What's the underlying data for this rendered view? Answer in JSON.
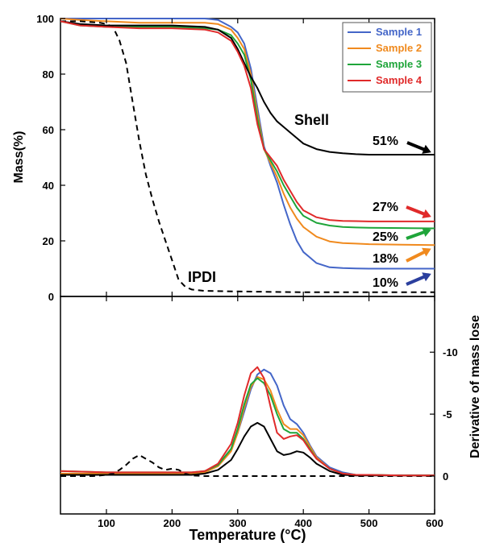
{
  "chart_data": [
    {
      "type": "line",
      "panel": "top",
      "xlabel": "",
      "ylabel": "Mass(%)",
      "xlim": [
        30,
        600
      ],
      "ylim": [
        0,
        100
      ],
      "yticks": [
        "0",
        "20",
        "40",
        "60",
        "80",
        "100"
      ],
      "grid": false,
      "legend_position": "top-right",
      "series": [
        {
          "name": "Sample 1",
          "color": "#4466c8",
          "style": "solid",
          "x": [
            30,
            60,
            100,
            150,
            200,
            250,
            270,
            290,
            300,
            310,
            320,
            330,
            340,
            350,
            360,
            370,
            380,
            390,
            400,
            420,
            440,
            460,
            480,
            500,
            550,
            600
          ],
          "y": [
            100,
            100,
            100,
            100,
            100,
            100,
            99.5,
            97,
            95,
            91,
            82,
            68,
            54,
            47,
            41,
            33,
            26,
            20,
            16,
            12,
            10.5,
            10.2,
            10.1,
            10,
            10,
            10
          ]
        },
        {
          "name": "Sample 2",
          "color": "#f08a1e",
          "style": "solid",
          "x": [
            30,
            60,
            100,
            150,
            200,
            250,
            270,
            290,
            300,
            310,
            320,
            330,
            340,
            350,
            360,
            370,
            380,
            390,
            400,
            420,
            440,
            460,
            480,
            500,
            550,
            600
          ],
          "y": [
            100,
            99.5,
            99,
            98.5,
            98.5,
            98.5,
            98,
            96,
            93,
            89,
            80,
            66,
            53,
            48,
            43,
            37,
            32,
            28,
            25,
            21.5,
            19.8,
            19.2,
            19,
            18.8,
            18.6,
            18.5
          ]
        },
        {
          "name": "Sample 3",
          "color": "#1fa53a",
          "style": "solid",
          "x": [
            30,
            60,
            100,
            150,
            200,
            250,
            270,
            290,
            300,
            310,
            320,
            330,
            340,
            350,
            360,
            370,
            380,
            390,
            400,
            420,
            440,
            460,
            480,
            500,
            550,
            600
          ],
          "y": [
            99,
            97.5,
            97,
            97,
            97,
            96.5,
            96,
            94,
            91,
            87,
            78,
            64,
            53,
            49,
            45,
            40,
            36,
            32,
            29,
            26.5,
            25.5,
            25,
            24.8,
            24.7,
            24.6,
            24.5
          ]
        },
        {
          "name": "Sample 4",
          "color": "#e02a2a",
          "style": "solid",
          "x": [
            30,
            60,
            100,
            150,
            200,
            250,
            270,
            290,
            300,
            310,
            320,
            330,
            340,
            350,
            360,
            370,
            380,
            390,
            400,
            420,
            440,
            460,
            480,
            500,
            550,
            600
          ],
          "y": [
            99,
            97.5,
            97,
            96.5,
            96.5,
            96,
            95,
            92,
            88,
            83,
            75,
            62,
            53,
            50,
            47,
            42,
            38,
            34,
            31,
            28.5,
            27.5,
            27.2,
            27.1,
            27,
            27,
            27
          ]
        },
        {
          "name": "Shell",
          "color": "#000000",
          "style": "solid",
          "x": [
            30,
            60,
            100,
            150,
            200,
            250,
            270,
            290,
            300,
            310,
            320,
            330,
            340,
            350,
            360,
            370,
            380,
            390,
            400,
            420,
            440,
            460,
            480,
            500,
            550,
            600
          ],
          "y": [
            99,
            98,
            97.5,
            97.5,
            97.5,
            97,
            96,
            93,
            89,
            84,
            79,
            75,
            70,
            66,
            63,
            61,
            59,
            57,
            55,
            53,
            52,
            51.5,
            51.2,
            51,
            51,
            51
          ]
        },
        {
          "name": "IPDI",
          "color": "#000000",
          "style": "dashed",
          "x": [
            30,
            60,
            90,
            100,
            110,
            120,
            130,
            140,
            150,
            160,
            170,
            180,
            190,
            200,
            210,
            220,
            230,
            250,
            300,
            400,
            500,
            600
          ],
          "y": [
            99,
            99,
            98.5,
            98,
            97,
            92,
            84,
            70,
            56,
            44,
            35,
            27,
            20,
            13,
            6,
            3.5,
            2.5,
            2,
            1.8,
            1.5,
            1.5,
            1.5
          ]
        }
      ]
    },
    {
      "type": "line",
      "panel": "bottom",
      "xlabel": "Temperature (°C)",
      "ylabel": "Derivative of mass lose",
      "xlim": [
        30,
        600
      ],
      "ylim": [
        0,
        -14.5
      ],
      "xticks": [
        "100",
        "200",
        "300",
        "400",
        "500",
        "600"
      ],
      "yticks": [
        "0",
        "-5",
        "-10"
      ],
      "grid": false,
      "series": [
        {
          "name": "Sample 1",
          "color": "#4466c8",
          "style": "solid",
          "x": [
            30,
            100,
            150,
            200,
            230,
            250,
            270,
            290,
            300,
            310,
            320,
            330,
            340,
            350,
            360,
            370,
            380,
            390,
            400,
            410,
            420,
            440,
            460,
            480,
            500,
            550,
            600
          ],
          "y": [
            -0.1,
            -0.1,
            -0.1,
            -0.1,
            -0.2,
            -0.4,
            -0.9,
            -2.2,
            -3.5,
            -5.2,
            -7,
            -8.2,
            -8.6,
            -8.3,
            -7.3,
            -5.7,
            -4.6,
            -4.2,
            -3.5,
            -2.5,
            -1.6,
            -0.7,
            -0.3,
            -0.1,
            -0.1,
            -0.05,
            -0.05
          ]
        },
        {
          "name": "Sample 2",
          "color": "#f08a1e",
          "style": "solid",
          "x": [
            30,
            100,
            150,
            200,
            230,
            250,
            270,
            290,
            300,
            310,
            320,
            330,
            340,
            350,
            360,
            370,
            380,
            390,
            400,
            410,
            420,
            440,
            460,
            480,
            500,
            550,
            600
          ],
          "y": [
            -0.2,
            -0.2,
            -0.2,
            -0.2,
            -0.2,
            -0.3,
            -0.8,
            -2,
            -3.5,
            -5.5,
            -7.2,
            -8,
            -7.8,
            -6.9,
            -5.4,
            -4.2,
            -3.8,
            -3.8,
            -3.3,
            -2.4,
            -1.5,
            -0.6,
            -0.2,
            -0.1,
            -0.1,
            -0.05,
            -0.05
          ]
        },
        {
          "name": "Sample 3",
          "color": "#1fa53a",
          "style": "solid",
          "x": [
            30,
            100,
            150,
            200,
            230,
            250,
            270,
            290,
            300,
            310,
            320,
            330,
            340,
            350,
            360,
            370,
            380,
            390,
            400,
            410,
            420,
            440,
            460,
            480,
            500,
            550,
            600
          ],
          "y": [
            -0.4,
            -0.3,
            -0.3,
            -0.3,
            -0.3,
            -0.4,
            -0.9,
            -2.2,
            -3.8,
            -5.8,
            -7.4,
            -7.9,
            -7.5,
            -6.5,
            -5,
            -3.8,
            -3.5,
            -3.5,
            -3,
            -2.2,
            -1.4,
            -0.6,
            -0.2,
            -0.1,
            -0.1,
            -0.05,
            -0.05
          ]
        },
        {
          "name": "Sample 4",
          "color": "#e02a2a",
          "style": "solid",
          "x": [
            30,
            100,
            150,
            200,
            230,
            250,
            270,
            290,
            300,
            310,
            320,
            330,
            340,
            350,
            360,
            370,
            380,
            390,
            400,
            410,
            420,
            440,
            460,
            480,
            500,
            550,
            600
          ],
          "y": [
            -0.4,
            -0.3,
            -0.3,
            -0.3,
            -0.3,
            -0.4,
            -1,
            -2.6,
            -4.3,
            -6.5,
            -8.3,
            -8.8,
            -7.9,
            -5.6,
            -3.5,
            -3,
            -3.2,
            -3.3,
            -2.9,
            -2.1,
            -1.4,
            -0.6,
            -0.2,
            -0.1,
            -0.1,
            -0.05,
            -0.05
          ]
        },
        {
          "name": "Shell",
          "color": "#000000",
          "style": "solid",
          "x": [
            30,
            100,
            150,
            200,
            230,
            250,
            270,
            290,
            300,
            310,
            320,
            330,
            340,
            350,
            360,
            370,
            380,
            390,
            400,
            410,
            420,
            440,
            460,
            480,
            500,
            550,
            600
          ],
          "y": [
            -0.1,
            -0.1,
            -0.1,
            -0.1,
            -0.1,
            -0.2,
            -0.5,
            -1.3,
            -2.2,
            -3.2,
            -4,
            -4.3,
            -4,
            -3,
            -2,
            -1.7,
            -1.8,
            -2,
            -1.9,
            -1.5,
            -1,
            -0.4,
            -0.1,
            -0.05,
            -0.05,
            -0.05,
            -0.05
          ]
        },
        {
          "name": "IPDI",
          "color": "#000000",
          "style": "dashed",
          "x": [
            30,
            80,
            100,
            110,
            120,
            130,
            140,
            150,
            160,
            170,
            180,
            190,
            200,
            210,
            220,
            230,
            250,
            300,
            400,
            500,
            600
          ],
          "y": [
            0,
            0,
            -0.1,
            -0.2,
            -0.5,
            -0.9,
            -1.4,
            -1.7,
            -1.4,
            -1.1,
            -0.7,
            -0.5,
            -0.6,
            -0.5,
            -0.2,
            -0.05,
            0,
            0,
            0,
            0,
            0
          ]
        }
      ]
    }
  ],
  "annotations": {
    "shell": "Shell",
    "ipdi": "IPDI",
    "pct_51": "51%",
    "pct_27": "27%",
    "pct_25": "25%",
    "pct_18": "18%",
    "pct_10": "10%"
  },
  "arrow_colors": {
    "pct_51": "#000000",
    "pct_27": "#e02a2a",
    "pct_25": "#1fa53a",
    "pct_18": "#f08a1e",
    "pct_10": "#2b3f9e"
  }
}
